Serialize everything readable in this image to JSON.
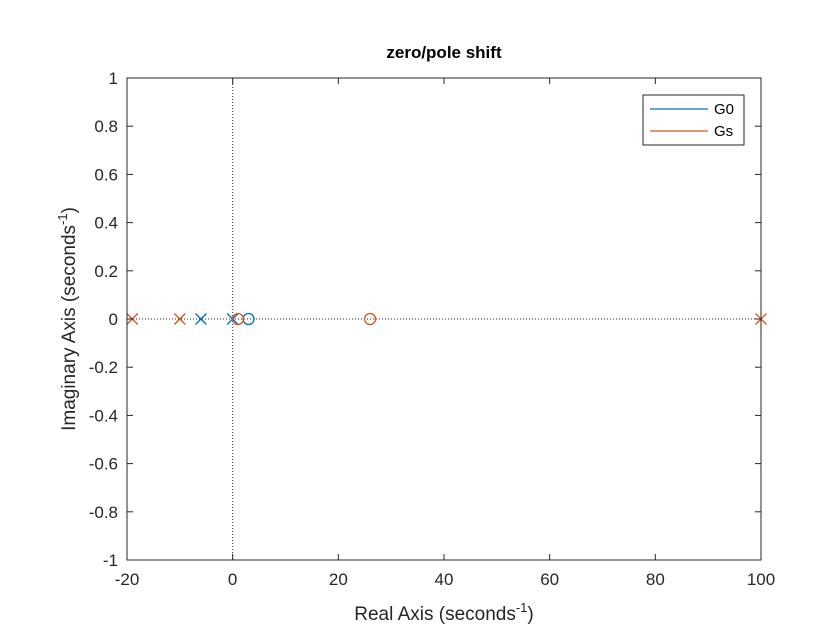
{
  "chart_data": {
    "type": "scatter",
    "title": "zero/pole shift",
    "xlabel": {
      "base": "Real Axis (seconds",
      "sup": "-1",
      "tail": ")"
    },
    "ylabel": {
      "base": "Imaginary Axis (seconds",
      "sup": "-1",
      "tail": ")"
    },
    "xlim": [
      -20,
      100
    ],
    "ylim": [
      -1,
      1
    ],
    "xticks": [
      -20,
      0,
      20,
      40,
      60,
      80,
      100
    ],
    "yticks": [
      -1,
      -0.8,
      -0.6,
      -0.4,
      -0.2,
      0,
      0.2,
      0.4,
      0.6,
      0.8,
      1
    ],
    "grid": false,
    "legend_position": "top-right",
    "reference_lines": [
      {
        "orientation": "vertical",
        "value": 0,
        "style": "dotted"
      },
      {
        "orientation": "horizontal",
        "value": 0,
        "style": "dotted"
      }
    ],
    "series": [
      {
        "name": "G0",
        "color": "#0072BD",
        "poles": [
          [
            -6,
            0
          ],
          [
            0,
            0
          ]
        ],
        "zeros": [
          [
            3,
            0
          ]
        ]
      },
      {
        "name": "Gs",
        "color": "#D95319",
        "poles": [
          [
            -19,
            0
          ],
          [
            -10,
            0
          ],
          [
            100,
            0
          ]
        ],
        "zeros": [
          [
            1,
            0
          ],
          [
            26,
            0
          ]
        ]
      }
    ]
  }
}
